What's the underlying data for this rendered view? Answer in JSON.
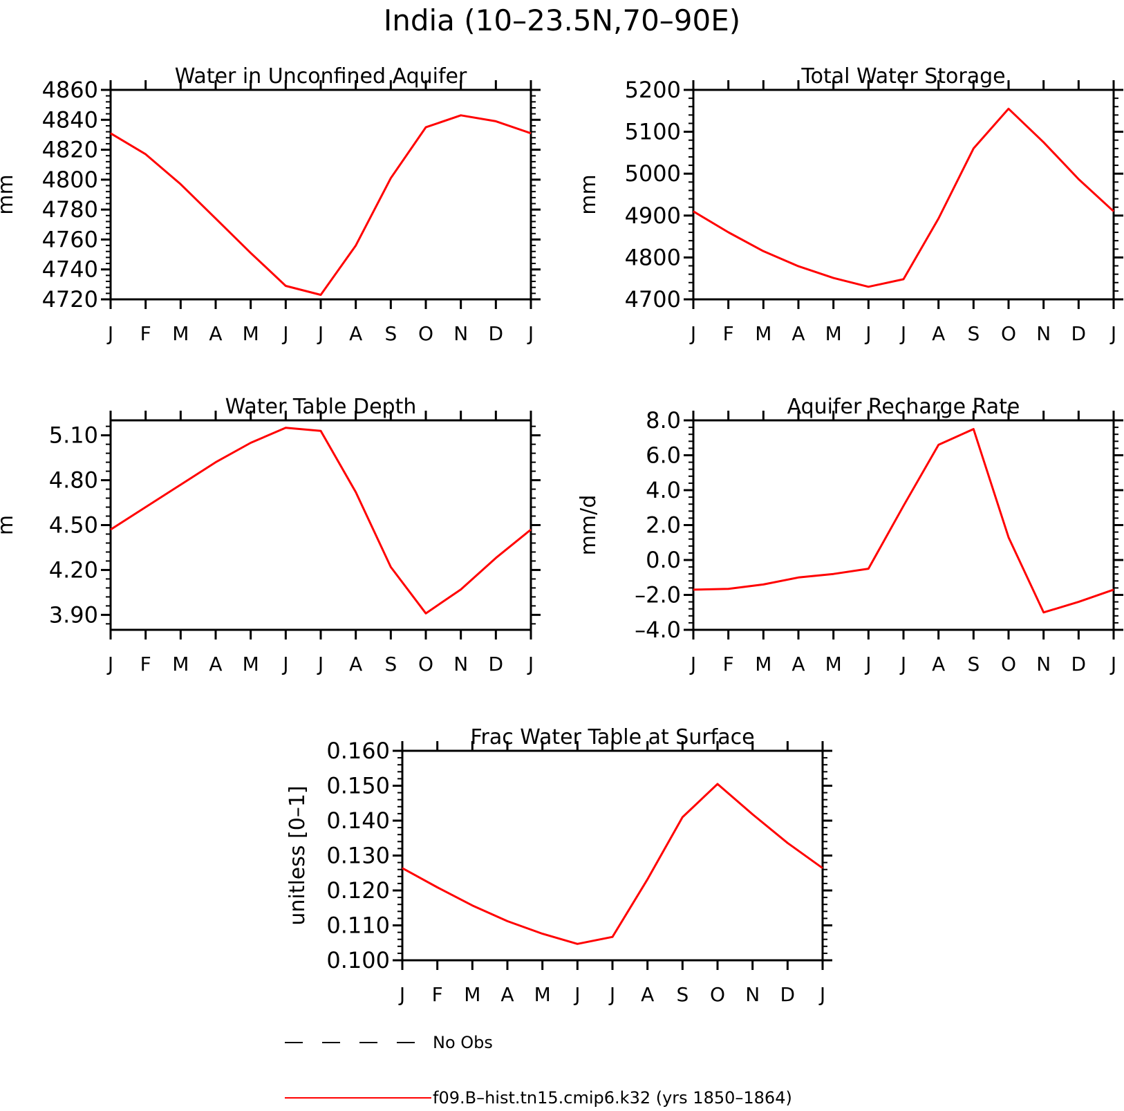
{
  "figure": {
    "title": "India (10–23.5N,70–90E)",
    "legend": [
      {
        "label": "No Obs",
        "style": "dashed",
        "color": "#000000"
      },
      {
        "label": "f09.B–hist.tn15.cmip6.k32 (yrs 1850–1864)",
        "style": "solid",
        "color": "#ff0000"
      }
    ]
  },
  "chart_data": [
    {
      "type": "line",
      "title": "Water in Unconfined Aquifer",
      "ylabel": "mm",
      "categories": [
        "J",
        "F",
        "M",
        "A",
        "M",
        "J",
        "J",
        "A",
        "S",
        "O",
        "N",
        "D",
        "J"
      ],
      "ylim": [
        4720,
        4860
      ],
      "yticks": [
        4720,
        4740,
        4760,
        4780,
        4800,
        4820,
        4840,
        4860
      ],
      "ytick_labels": [
        "4720",
        "4740",
        "4760",
        "4780",
        "4800",
        "4820",
        "4840",
        "4860"
      ],
      "series": [
        {
          "color": "#ff0000",
          "values": [
            4831,
            4817,
            4797,
            4774,
            4751,
            4729,
            4723,
            4756,
            4801,
            4835,
            4843,
            4839,
            4831
          ]
        }
      ]
    },
    {
      "type": "line",
      "title": "Total Water Storage",
      "ylabel": "mm",
      "categories": [
        "J",
        "F",
        "M",
        "A",
        "M",
        "J",
        "J",
        "A",
        "S",
        "O",
        "N",
        "D",
        "J"
      ],
      "ylim": [
        4700,
        5200
      ],
      "yticks": [
        4700,
        4800,
        4900,
        5000,
        5100,
        5200
      ],
      "ytick_labels": [
        "4700",
        "4800",
        "4900",
        "5000",
        "5100",
        "5200"
      ],
      "series": [
        {
          "color": "#ff0000",
          "values": [
            4910,
            4860,
            4815,
            4779,
            4751,
            4730,
            4748,
            4893,
            5060,
            5155,
            5075,
            4987,
            4910
          ]
        }
      ]
    },
    {
      "type": "line",
      "title": "Water Table Depth",
      "ylabel": "m",
      "categories": [
        "J",
        "F",
        "M",
        "A",
        "M",
        "J",
        "J",
        "A",
        "S",
        "O",
        "N",
        "D",
        "J"
      ],
      "ylim": [
        3.8,
        5.2
      ],
      "yticks": [
        3.9,
        4.2,
        4.5,
        4.8,
        5.1
      ],
      "ytick_labels": [
        "3.90",
        "4.20",
        "4.50",
        "4.80",
        "5.10"
      ],
      "series": [
        {
          "color": "#ff0000",
          "values": [
            4.47,
            4.62,
            4.77,
            4.92,
            5.05,
            5.15,
            5.13,
            4.72,
            4.22,
            3.91,
            4.07,
            4.28,
            4.47
          ]
        }
      ]
    },
    {
      "type": "line",
      "title": "Aquifer Recharge Rate",
      "ylabel": "mm/d",
      "categories": [
        "J",
        "F",
        "M",
        "A",
        "M",
        "J",
        "J",
        "A",
        "S",
        "O",
        "N",
        "D",
        "J"
      ],
      "ylim": [
        -4,
        8
      ],
      "yticks": [
        -4,
        -2,
        0,
        2,
        4,
        6,
        8
      ],
      "ytick_labels": [
        "–4.0",
        "–2.0",
        "0.0",
        "2.0",
        "4.0",
        "6.0",
        "8.0"
      ],
      "series": [
        {
          "color": "#ff0000",
          "values": [
            -1.7,
            -1.65,
            -1.4,
            -1.0,
            -0.8,
            -0.5,
            3.1,
            6.6,
            7.5,
            1.3,
            -3.0,
            -2.4,
            -1.7
          ]
        }
      ]
    },
    {
      "type": "line",
      "title": "Frac Water Table at Surface",
      "ylabel": "unitless [0–1]",
      "categories": [
        "J",
        "F",
        "M",
        "A",
        "M",
        "J",
        "J",
        "A",
        "S",
        "O",
        "N",
        "D",
        "J"
      ],
      "ylim": [
        0.1,
        0.16
      ],
      "yticks": [
        0.1,
        0.11,
        0.12,
        0.13,
        0.14,
        0.15,
        0.16
      ],
      "ytick_labels": [
        "0.100",
        "0.110",
        "0.120",
        "0.130",
        "0.140",
        "0.150",
        "0.160"
      ],
      "series": [
        {
          "color": "#ff0000",
          "values": [
            0.1264,
            0.1209,
            0.1157,
            0.1112,
            0.1076,
            0.1047,
            0.1067,
            0.1232,
            0.141,
            0.1505,
            0.1418,
            0.1336,
            0.1264
          ]
        }
      ]
    }
  ]
}
